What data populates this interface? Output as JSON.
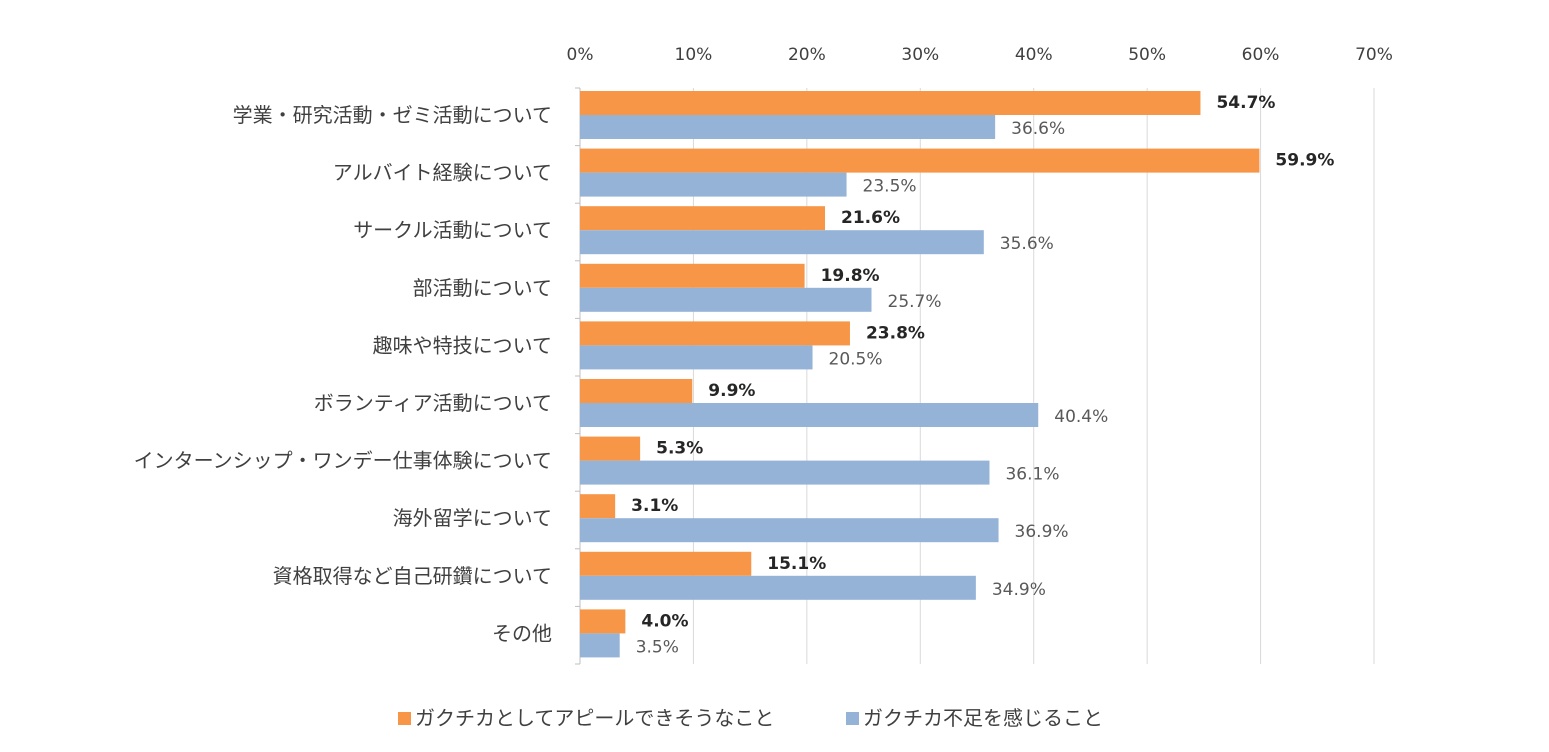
{
  "chart_data": {
    "type": "bar",
    "orientation": "horizontal",
    "title": "",
    "xlabel": "",
    "ylabel": "",
    "xlim": [
      0,
      70
    ],
    "x_ticks": [
      0,
      10,
      20,
      30,
      40,
      50,
      60,
      70
    ],
    "x_tick_labels": [
      "0%",
      "10%",
      "20%",
      "30%",
      "40%",
      "50%",
      "60%",
      "70%"
    ],
    "x_axis_position": "top",
    "grid": true,
    "legend_position": "bottom-center",
    "categories": [
      "学業・研究活動・ゼミ活動について",
      "アルバイト経験について",
      "サークル活動について",
      "部活動について",
      "趣味や特技について",
      "ボランティア活動について",
      "インターンシップ・ワンデー仕事体験について",
      "海外留学について",
      "資格取得など自己研鑽について",
      "その他"
    ],
    "series": [
      {
        "name": "ガクチカとしてアピールできそうなこと",
        "color": "#f79646",
        "values": [
          54.7,
          59.9,
          21.6,
          19.8,
          23.8,
          9.9,
          5.3,
          3.1,
          15.1,
          4.0
        ],
        "value_labels": [
          "54.7%",
          "59.9%",
          "21.6%",
          "19.8%",
          "23.8%",
          "9.9%",
          "5.3%",
          "3.1%",
          "15.1%",
          "4.0%"
        ]
      },
      {
        "name": "ガクチカ不足を感じること",
        "color": "#95b3d7",
        "values": [
          36.6,
          23.5,
          35.6,
          25.7,
          20.5,
          40.4,
          36.1,
          36.9,
          34.9,
          3.5
        ],
        "value_labels": [
          "36.6%",
          "23.5%",
          "35.6%",
          "25.7%",
          "20.5%",
          "40.4%",
          "36.1%",
          "36.9%",
          "34.9%",
          "3.5%"
        ]
      }
    ]
  }
}
